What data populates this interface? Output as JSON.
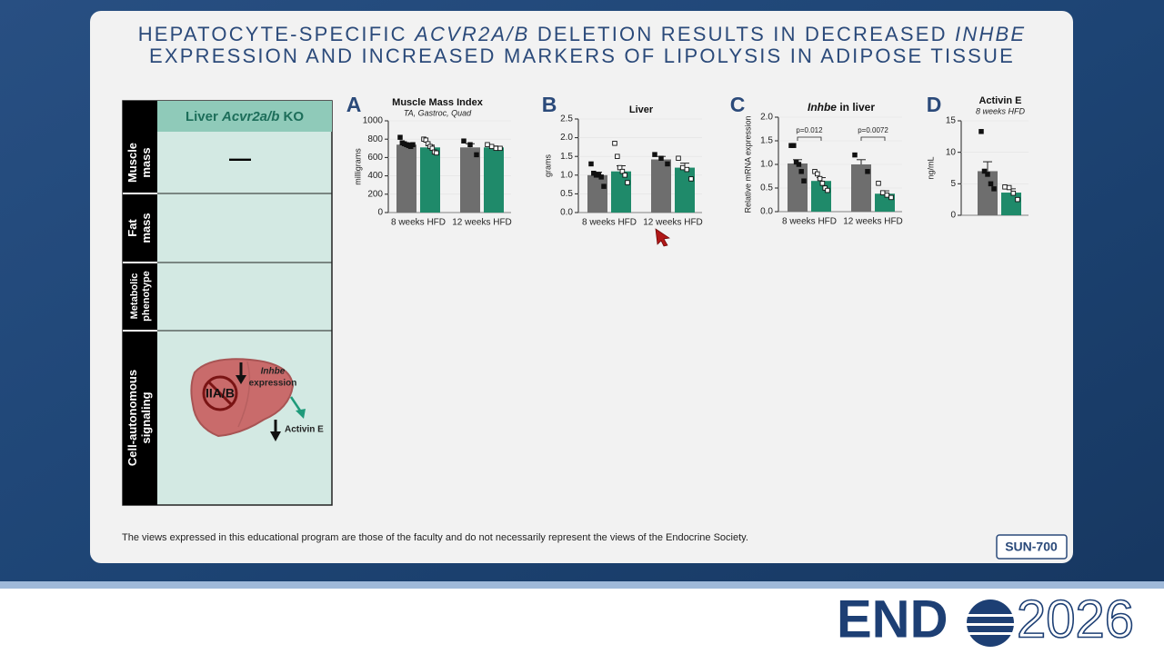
{
  "title": [
    "HEPATOCYTE-SPECIFIC",
    "ACVR2A/B",
    "DELETION RESULTS IN DECREASED",
    "INHBE",
    "EXPRESSION AND INCREASED MARKERS OF LIPOLYSIS IN ADIPOSE TISSUE"
  ],
  "table": {
    "header": [
      "Liver",
      "Acvr2a/b",
      "KO"
    ],
    "row_labels": [
      [
        "Muscle",
        "mass"
      ],
      [
        "Fat",
        "mass"
      ],
      [
        "Metabolic",
        "phenotype"
      ],
      [
        "Cell-autonomous",
        "signaling"
      ]
    ],
    "muscle_mass": "—",
    "diagram": {
      "receptor": "IIA/B",
      "gene": "Inhbe",
      "gene_note": "expression",
      "protein": "Activin E"
    }
  },
  "chart_data": [
    {
      "type": "bar",
      "label": "A",
      "title": "Muscle Mass Index",
      "subtitle": "TA, Gastroc, Quad",
      "y_label": "milligrams",
      "categories": [
        "8 weeks HFD",
        "12 weeks HFD"
      ],
      "ylim": [
        0,
        1000
      ],
      "yticks": [
        0,
        200,
        400,
        600,
        800,
        1000
      ],
      "series": [
        {
          "color": "#6e6e6e",
          "point_style": "filled",
          "values": [
            740,
            710
          ],
          "errors": [
            20,
            40
          ],
          "points": [
            [
              820,
              760,
              750,
              740,
              730,
              720,
              740
            ],
            [
              780,
              740,
              630
            ]
          ]
        },
        {
          "color": "#1f8a6a",
          "point_style": "open",
          "values": [
            710,
            710
          ],
          "errors": [
            25,
            15
          ],
          "points": [
            [
              800,
              790,
              750,
              720,
              700,
              660,
              650
            ],
            [
              740,
              720,
              700,
              700
            ]
          ]
        }
      ]
    },
    {
      "type": "bar",
      "label": "B",
      "title": "Liver",
      "y_label": "grams",
      "categories": [
        "8 weeks HFD",
        "12 weeks HFD"
      ],
      "ylim": [
        0,
        2.5
      ],
      "yticks": [
        {
          "value": 0,
          "label": "0.0"
        },
        0.5,
        {
          "value": 1,
          "label": "1.0"
        },
        1.5,
        {
          "value": 2,
          "label": "2.0"
        },
        2.5
      ],
      "series": [
        {
          "color": "#6e6e6e",
          "point_style": "filled",
          "values": [
            1.0,
            1.42
          ],
          "errors": [
            0.08,
            0.08
          ],
          "points": [
            [
              1.3,
              1.05,
              1.0,
              1.0,
              0.95,
              0.7
            ],
            [
              1.55,
              1.45,
              1.3
            ]
          ]
        },
        {
          "color": "#1f8a6a",
          "point_style": "open",
          "values": [
            1.1,
            1.2
          ],
          "errors": [
            0.15,
            0.12
          ],
          "points": [
            [
              1.85,
              1.5,
              1.2,
              1.1,
              1.0,
              0.8
            ],
            [
              1.45,
              1.2,
              1.15,
              0.9
            ]
          ]
        }
      ]
    },
    {
      "type": "bar",
      "label": "C",
      "title": [
        "Inhbe",
        "in liver"
      ],
      "y_label": "Relative mRNA expression",
      "categories": [
        "8 weeks HFD",
        "12 weeks HFD"
      ],
      "ylim": [
        0,
        2
      ],
      "yticks": [
        {
          "value": 0,
          "label": "0.0"
        },
        0.5,
        {
          "value": 1,
          "label": "1.0"
        },
        1.5,
        {
          "value": 2,
          "label": "2.0"
        }
      ],
      "annotations": [
        "p=0.012",
        "p=0.0072"
      ],
      "series": [
        {
          "color": "#6e6e6e",
          "point_style": "filled",
          "values": [
            1.02,
            1.0
          ],
          "errors": [
            0.08,
            0.1
          ],
          "points": [
            [
              1.4,
              1.4,
              1.05,
              1.0,
              0.85,
              0.65
            ],
            [
              1.2,
              0.85
            ]
          ]
        },
        {
          "color": "#1f8a6a",
          "point_style": "open",
          "values": [
            0.65,
            0.38
          ],
          "errors": [
            0.07,
            0.06
          ],
          "points": [
            [
              0.85,
              0.8,
              0.7,
              0.6,
              0.5,
              0.45
            ],
            [
              0.6,
              0.4,
              0.35,
              0.3
            ]
          ]
        }
      ]
    },
    {
      "type": "bar",
      "label": "D",
      "title": "Activin E",
      "subtitle": "8 weeks HFD",
      "y_label": "ng/mL",
      "categories": [
        null
      ],
      "ylim": [
        0,
        15
      ],
      "yticks": [
        0,
        5,
        10,
        15
      ],
      "series": [
        {
          "color": "#6e6e6e",
          "point_style": "filled",
          "values": [
            7.0
          ],
          "errors": [
            1.5
          ],
          "points": [
            [
              13.3,
              7,
              6.5,
              5,
              4.2
            ]
          ]
        },
        {
          "color": "#1f8a6a",
          "point_style": "open",
          "values": [
            3.6
          ],
          "errors": [
            0.6
          ],
          "points": [
            [
              4.5,
              4.4,
              3.5,
              2.5
            ]
          ]
        }
      ]
    }
  ],
  "footer": {
    "disclaimer": "The views expressed in this educational program are those of the faculty and do not necessarily represent the views of the Endocrine Society.",
    "poster_id": "SUN-700"
  },
  "logo": {
    "left": "END",
    "right": "2026"
  }
}
